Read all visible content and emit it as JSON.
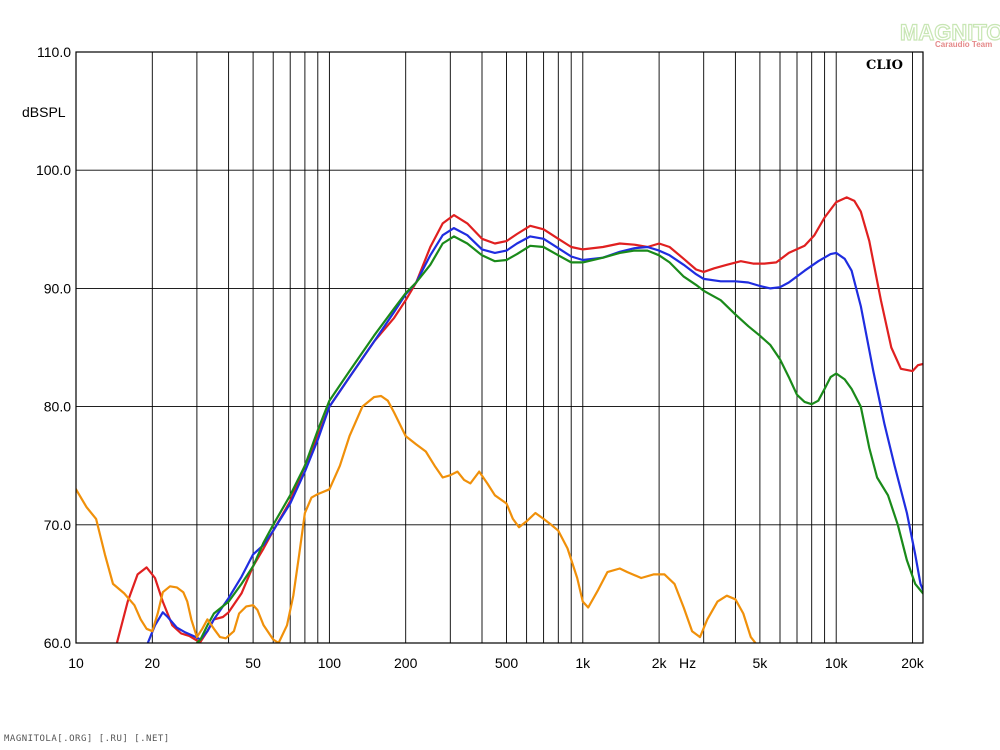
{
  "watermark": {
    "title": "MAGNITOLA",
    "subtitle": "Caraudio Team"
  },
  "clio_label": "CLIO",
  "footer_text": "MAGNITOLA[.ORG] [.RU] [.NET]",
  "chart_data": {
    "type": "line",
    "xscale": "log",
    "xlim": [
      10,
      22000
    ],
    "ylim": [
      60,
      110
    ],
    "ylabel": "dBSPL",
    "xunit": "Hz",
    "grid": true,
    "y_ticks": [
      {
        "v": 60,
        "label": "60.0"
      },
      {
        "v": 70,
        "label": "70.0"
      },
      {
        "v": 80,
        "label": "80.0"
      },
      {
        "v": 90,
        "label": "90.0"
      },
      {
        "v": 100,
        "label": "100.0"
      },
      {
        "v": 110,
        "label": "110.0"
      }
    ],
    "x_ticks": [
      {
        "v": 10,
        "label": "10"
      },
      {
        "v": 20,
        "label": "20"
      },
      {
        "v": 50,
        "label": "50"
      },
      {
        "v": 100,
        "label": "100"
      },
      {
        "v": 200,
        "label": "200"
      },
      {
        "v": 500,
        "label": "500"
      },
      {
        "v": 1000,
        "label": "1k"
      },
      {
        "v": 2000,
        "label": "2k"
      },
      {
        "v": 5000,
        "label": "5k"
      },
      {
        "v": 10000,
        "label": "10k"
      },
      {
        "v": 20000,
        "label": "20k"
      }
    ],
    "x_grid": [
      10,
      20,
      30,
      40,
      50,
      60,
      70,
      80,
      90,
      100,
      200,
      300,
      400,
      500,
      600,
      700,
      800,
      900,
      1000,
      2000,
      3000,
      4000,
      5000,
      6000,
      7000,
      8000,
      9000,
      10000,
      20000
    ],
    "series": [
      {
        "color": "#e02020",
        "points": [
          [
            14.5,
            60
          ],
          [
            16,
            63.5
          ],
          [
            17.5,
            65.8
          ],
          [
            19,
            66.4
          ],
          [
            20.5,
            65.5
          ],
          [
            22,
            63.5
          ],
          [
            24,
            61.5
          ],
          [
            26,
            60.8
          ],
          [
            28,
            60.6
          ],
          [
            30,
            60.2
          ],
          [
            31,
            60.1
          ],
          [
            33,
            61
          ],
          [
            35,
            62
          ],
          [
            38,
            62.2
          ],
          [
            40,
            62.6
          ],
          [
            45,
            64.2
          ],
          [
            50,
            66.5
          ],
          [
            55,
            68
          ],
          [
            60,
            69.5
          ],
          [
            70,
            72
          ],
          [
            80,
            75
          ],
          [
            90,
            77.5
          ],
          [
            100,
            80
          ],
          [
            120,
            82.5
          ],
          [
            150,
            85.5
          ],
          [
            180,
            87.5
          ],
          [
            200,
            89
          ],
          [
            220,
            90.5
          ],
          [
            250,
            93.5
          ],
          [
            280,
            95.5
          ],
          [
            310,
            96.2
          ],
          [
            350,
            95.5
          ],
          [
            400,
            94.2
          ],
          [
            450,
            93.8
          ],
          [
            500,
            94
          ],
          [
            550,
            94.6
          ],
          [
            620,
            95.3
          ],
          [
            700,
            95
          ],
          [
            800,
            94.2
          ],
          [
            900,
            93.5
          ],
          [
            1000,
            93.3
          ],
          [
            1200,
            93.5
          ],
          [
            1400,
            93.8
          ],
          [
            1600,
            93.7
          ],
          [
            1800,
            93.5
          ],
          [
            2000,
            93.8
          ],
          [
            2200,
            93.5
          ],
          [
            2500,
            92.5
          ],
          [
            2800,
            91.6
          ],
          [
            3000,
            91.4
          ],
          [
            3300,
            91.7
          ],
          [
            3700,
            92
          ],
          [
            4200,
            92.3
          ],
          [
            4700,
            92.1
          ],
          [
            5200,
            92.1
          ],
          [
            5800,
            92.2
          ],
          [
            6500,
            93
          ],
          [
            7500,
            93.6
          ],
          [
            8200,
            94.5
          ],
          [
            9000,
            96
          ],
          [
            10000,
            97.3
          ],
          [
            11000,
            97.7
          ],
          [
            11800,
            97.4
          ],
          [
            12500,
            96.5
          ],
          [
            13500,
            94
          ],
          [
            15000,
            89
          ],
          [
            16500,
            85
          ],
          [
            18000,
            83.2
          ],
          [
            20000,
            83
          ],
          [
            21000,
            83.5
          ],
          [
            22000,
            83.6
          ]
        ]
      },
      {
        "color": "#1f2de0",
        "points": [
          [
            19.2,
            60
          ],
          [
            20.5,
            61.5
          ],
          [
            22,
            62.6
          ],
          [
            23,
            62.2
          ],
          [
            25,
            61.3
          ],
          [
            27,
            60.9
          ],
          [
            29,
            60.6
          ],
          [
            31,
            60.3
          ],
          [
            33,
            61
          ],
          [
            35,
            62
          ],
          [
            40,
            63.8
          ],
          [
            45,
            65.6
          ],
          [
            50,
            67.5
          ],
          [
            55,
            68.3
          ],
          [
            60,
            69.5
          ],
          [
            70,
            71.8
          ],
          [
            80,
            74.5
          ],
          [
            90,
            77.2
          ],
          [
            100,
            80
          ],
          [
            120,
            82.5
          ],
          [
            150,
            85.5
          ],
          [
            180,
            88
          ],
          [
            200,
            89.5
          ],
          [
            220,
            90.5
          ],
          [
            250,
            92.8
          ],
          [
            280,
            94.5
          ],
          [
            310,
            95.1
          ],
          [
            350,
            94.5
          ],
          [
            400,
            93.3
          ],
          [
            450,
            93
          ],
          [
            500,
            93.2
          ],
          [
            550,
            93.8
          ],
          [
            620,
            94.4
          ],
          [
            700,
            94.2
          ],
          [
            800,
            93.4
          ],
          [
            900,
            92.7
          ],
          [
            1000,
            92.4
          ],
          [
            1200,
            92.6
          ],
          [
            1400,
            93.1
          ],
          [
            1600,
            93.4
          ],
          [
            1800,
            93.5
          ],
          [
            2000,
            93.2
          ],
          [
            2200,
            92.8
          ],
          [
            2500,
            92
          ],
          [
            2800,
            91.2
          ],
          [
            3000,
            90.8
          ],
          [
            3500,
            90.6
          ],
          [
            4000,
            90.6
          ],
          [
            4500,
            90.5
          ],
          [
            5000,
            90.2
          ],
          [
            5500,
            90
          ],
          [
            6000,
            90.1
          ],
          [
            6500,
            90.5
          ],
          [
            7500,
            91.5
          ],
          [
            8500,
            92.3
          ],
          [
            9500,
            92.9
          ],
          [
            10000,
            93
          ],
          [
            10800,
            92.5
          ],
          [
            11500,
            91.5
          ],
          [
            12500,
            88.5
          ],
          [
            14000,
            83
          ],
          [
            15500,
            78.5
          ],
          [
            17000,
            75
          ],
          [
            19000,
            71
          ],
          [
            20500,
            67.5
          ],
          [
            21500,
            65
          ],
          [
            22000,
            64.5
          ]
        ]
      },
      {
        "color": "#1a8a1a",
        "points": [
          [
            30,
            60
          ],
          [
            31,
            60.3
          ],
          [
            33,
            61.5
          ],
          [
            35,
            62.5
          ],
          [
            40,
            63.5
          ],
          [
            45,
            65
          ],
          [
            50,
            66.5
          ],
          [
            55,
            68.5
          ],
          [
            60,
            70
          ],
          [
            70,
            72.5
          ],
          [
            80,
            75
          ],
          [
            90,
            78
          ],
          [
            100,
            80.5
          ],
          [
            120,
            83
          ],
          [
            150,
            86
          ],
          [
            180,
            88.3
          ],
          [
            200,
            89.6
          ],
          [
            220,
            90.5
          ],
          [
            250,
            92
          ],
          [
            280,
            93.8
          ],
          [
            310,
            94.4
          ],
          [
            350,
            93.8
          ],
          [
            400,
            92.8
          ],
          [
            450,
            92.3
          ],
          [
            500,
            92.4
          ],
          [
            550,
            92.9
          ],
          [
            620,
            93.6
          ],
          [
            700,
            93.5
          ],
          [
            800,
            92.8
          ],
          [
            900,
            92.2
          ],
          [
            1000,
            92.2
          ],
          [
            1200,
            92.6
          ],
          [
            1400,
            93
          ],
          [
            1600,
            93.2
          ],
          [
            1800,
            93.2
          ],
          [
            2000,
            92.8
          ],
          [
            2200,
            92.2
          ],
          [
            2500,
            91
          ],
          [
            2800,
            90.3
          ],
          [
            3000,
            89.8
          ],
          [
            3500,
            89
          ],
          [
            4000,
            87.8
          ],
          [
            4500,
            86.8
          ],
          [
            5000,
            86
          ],
          [
            5500,
            85.2
          ],
          [
            6000,
            84
          ],
          [
            6500,
            82.5
          ],
          [
            7000,
            81
          ],
          [
            7500,
            80.4
          ],
          [
            8000,
            80.2
          ],
          [
            8500,
            80.5
          ],
          [
            9000,
            81.5
          ],
          [
            9500,
            82.5
          ],
          [
            10000,
            82.8
          ],
          [
            10800,
            82.3
          ],
          [
            11500,
            81.5
          ],
          [
            12500,
            80
          ],
          [
            13500,
            76.5
          ],
          [
            14500,
            74
          ],
          [
            16000,
            72.5
          ],
          [
            17500,
            70
          ],
          [
            19000,
            67
          ],
          [
            20500,
            65
          ],
          [
            22000,
            64.2
          ]
        ]
      },
      {
        "color": "#f0900a",
        "points": [
          [
            10,
            73
          ],
          [
            11,
            71.5
          ],
          [
            12,
            70.5
          ],
          [
            13,
            67.5
          ],
          [
            14,
            65
          ],
          [
            15.5,
            64.2
          ],
          [
            17,
            63.2
          ],
          [
            18,
            62
          ],
          [
            19,
            61.2
          ],
          [
            20,
            61
          ],
          [
            21,
            62.5
          ],
          [
            22,
            64.3
          ],
          [
            23.5,
            64.8
          ],
          [
            25,
            64.7
          ],
          [
            26.5,
            64.3
          ],
          [
            27.5,
            63.5
          ],
          [
            28.5,
            62
          ],
          [
            30,
            60.5
          ],
          [
            31.5,
            61.2
          ],
          [
            33,
            62
          ],
          [
            35,
            61.2
          ],
          [
            37,
            60.5
          ],
          [
            39,
            60.4
          ],
          [
            42,
            61
          ],
          [
            44,
            62.5
          ],
          [
            47,
            63.1
          ],
          [
            50,
            63.2
          ],
          [
            52,
            62.8
          ],
          [
            55,
            61.5
          ],
          [
            60,
            60.3
          ],
          [
            63,
            60
          ],
          [
            68,
            61.5
          ],
          [
            72,
            64
          ],
          [
            76,
            67.5
          ],
          [
            80,
            71
          ],
          [
            85,
            72.3
          ],
          [
            90,
            72.6
          ],
          [
            100,
            73
          ],
          [
            110,
            75
          ],
          [
            120,
            77.5
          ],
          [
            135,
            80
          ],
          [
            150,
            80.8
          ],
          [
            160,
            80.9
          ],
          [
            170,
            80.5
          ],
          [
            180,
            79.5
          ],
          [
            200,
            77.5
          ],
          [
            220,
            76.8
          ],
          [
            240,
            76.2
          ],
          [
            260,
            75
          ],
          [
            280,
            74
          ],
          [
            300,
            74.2
          ],
          [
            320,
            74.5
          ],
          [
            340,
            73.8
          ],
          [
            360,
            73.5
          ],
          [
            390,
            74.5
          ],
          [
            420,
            73.5
          ],
          [
            450,
            72.5
          ],
          [
            500,
            71.8
          ],
          [
            530,
            70.5
          ],
          [
            560,
            69.8
          ],
          [
            600,
            70.3
          ],
          [
            650,
            71
          ],
          [
            700,
            70.5
          ],
          [
            750,
            70
          ],
          [
            800,
            69.5
          ],
          [
            870,
            68
          ],
          [
            950,
            65.5
          ],
          [
            1000,
            63.5
          ],
          [
            1050,
            63
          ],
          [
            1150,
            64.5
          ],
          [
            1250,
            66
          ],
          [
            1400,
            66.3
          ],
          [
            1500,
            66
          ],
          [
            1700,
            65.5
          ],
          [
            1900,
            65.8
          ],
          [
            2100,
            65.8
          ],
          [
            2300,
            65
          ],
          [
            2500,
            63
          ],
          [
            2700,
            61
          ],
          [
            2900,
            60.5
          ],
          [
            3100,
            62
          ],
          [
            3400,
            63.5
          ],
          [
            3700,
            64
          ],
          [
            4000,
            63.7
          ],
          [
            4300,
            62.5
          ],
          [
            4600,
            60.5
          ],
          [
            4800,
            60
          ]
        ]
      }
    ]
  }
}
